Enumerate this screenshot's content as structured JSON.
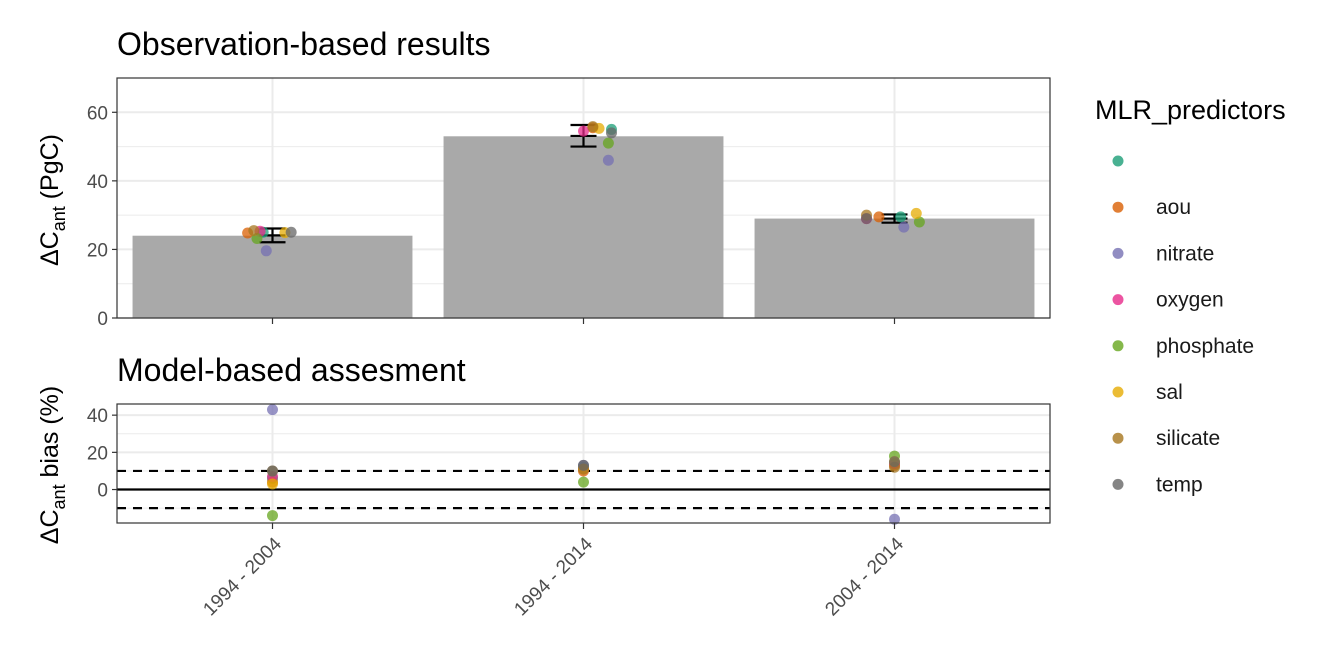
{
  "chart_data": [
    {
      "type": "bar",
      "title": "Observation-based results",
      "ylabel": {
        "main": "ΔC",
        "sub": "ant",
        "rest": " (PgC)"
      },
      "categories": [
        "1994 - 2004",
        "1994 - 2014",
        "2004 - 2014"
      ],
      "values": [
        24,
        53,
        29
      ],
      "errors": [
        {
          "mean": 24.1,
          "low": 22.1,
          "high": 26.1
        },
        {
          "mean": 53.1,
          "low": 50.0,
          "high": 56.3
        },
        {
          "mean": 29.0,
          "low": 27.8,
          "high": 30.2
        }
      ],
      "ylim": [
        0,
        70
      ],
      "yticks": [
        0,
        20,
        40,
        60
      ],
      "points": [
        {
          "cat": 0,
          "jitter": -0.03,
          "predictor": "",
          "value": 25.0
        },
        {
          "cat": 0,
          "jitter": -0.08,
          "predictor": "aou",
          "value": 24.8
        },
        {
          "cat": 0,
          "jitter": -0.02,
          "predictor": "nitrate",
          "value": 19.6
        },
        {
          "cat": 0,
          "jitter": -0.04,
          "predictor": "oxygen",
          "value": 25.3
        },
        {
          "cat": 0,
          "jitter": -0.05,
          "predictor": "phosphate",
          "value": 23.2
        },
        {
          "cat": 0,
          "jitter": 0.04,
          "predictor": "sal",
          "value": 24.9
        },
        {
          "cat": 0,
          "jitter": -0.06,
          "predictor": "silicate",
          "value": 25.5
        },
        {
          "cat": 0,
          "jitter": 0.06,
          "predictor": "temp",
          "value": 25.0
        },
        {
          "cat": 1,
          "jitter": 0.09,
          "predictor": "",
          "value": 55.0
        },
        {
          "cat": 1,
          "jitter": 0.03,
          "predictor": "aou",
          "value": 55.5
        },
        {
          "cat": 1,
          "jitter": 0.08,
          "predictor": "nitrate",
          "value": 46.0
        },
        {
          "cat": 1,
          "jitter": 0.0,
          "predictor": "oxygen",
          "value": 54.5
        },
        {
          "cat": 1,
          "jitter": 0.08,
          "predictor": "phosphate",
          "value": 51.0
        },
        {
          "cat": 1,
          "jitter": 0.05,
          "predictor": "sal",
          "value": 55.3
        },
        {
          "cat": 1,
          "jitter": 0.03,
          "predictor": "silicate",
          "value": 55.8
        },
        {
          "cat": 1,
          "jitter": 0.09,
          "predictor": "temp",
          "value": 54.0
        },
        {
          "cat": 2,
          "jitter": 0.02,
          "predictor": "",
          "value": 29.5
        },
        {
          "cat": 2,
          "jitter": -0.05,
          "predictor": "aou",
          "value": 29.5
        },
        {
          "cat": 2,
          "jitter": 0.03,
          "predictor": "nitrate",
          "value": 26.5
        },
        {
          "cat": 2,
          "jitter": -0.09,
          "predictor": "oxygen",
          "value": 29.0
        },
        {
          "cat": 2,
          "jitter": 0.08,
          "predictor": "phosphate",
          "value": 28.0
        },
        {
          "cat": 2,
          "jitter": 0.07,
          "predictor": "sal",
          "value": 30.5
        },
        {
          "cat": 2,
          "jitter": -0.09,
          "predictor": "silicate",
          "value": 30.0
        },
        {
          "cat": 2,
          "jitter": -0.09,
          "predictor": "temp",
          "value": 29.0
        }
      ]
    },
    {
      "type": "scatter",
      "title": "Model-based assesment",
      "ylabel": {
        "main": "ΔC",
        "sub": "ant",
        "rest": " bias (%)"
      },
      "categories": [
        "1994 - 2004",
        "1994 - 2014",
        "2004 - 2014"
      ],
      "ylim": [
        -18,
        46
      ],
      "yticks": [
        0,
        20,
        40
      ],
      "hline_solid": 0,
      "hlines_dashed": [
        10,
        -10
      ],
      "points": [
        {
          "cat": 0,
          "predictor": "",
          "value": 6.0
        },
        {
          "cat": 0,
          "predictor": "aou",
          "value": 4.0
        },
        {
          "cat": 0,
          "predictor": "nitrate",
          "value": 43.0
        },
        {
          "cat": 0,
          "predictor": "oxygen",
          "value": 7.0
        },
        {
          "cat": 0,
          "predictor": "phosphate",
          "value": -14.0
        },
        {
          "cat": 0,
          "predictor": "sal",
          "value": 3.0
        },
        {
          "cat": 0,
          "predictor": "silicate",
          "value": 10.0
        },
        {
          "cat": 0,
          "predictor": "temp",
          "value": 10.0
        },
        {
          "cat": 1,
          "predictor": "",
          "value": 12.0
        },
        {
          "cat": 1,
          "predictor": "aou",
          "value": 10.0
        },
        {
          "cat": 1,
          "predictor": "nitrate",
          "value": 13.0
        },
        {
          "cat": 1,
          "predictor": "oxygen",
          "value": 11.0
        },
        {
          "cat": 1,
          "predictor": "phosphate",
          "value": 4.0
        },
        {
          "cat": 1,
          "predictor": "sal",
          "value": 11.0
        },
        {
          "cat": 1,
          "predictor": "silicate",
          "value": 11.0
        },
        {
          "cat": 1,
          "predictor": "temp",
          "value": 13.0
        },
        {
          "cat": 2,
          "predictor": "",
          "value": 14.0
        },
        {
          "cat": 2,
          "predictor": "aou",
          "value": 13.0
        },
        {
          "cat": 2,
          "predictor": "nitrate",
          "value": -16.0
        },
        {
          "cat": 2,
          "predictor": "oxygen",
          "value": 14.0
        },
        {
          "cat": 2,
          "predictor": "phosphate",
          "value": 18.0
        },
        {
          "cat": 2,
          "predictor": "sal",
          "value": 15.0
        },
        {
          "cat": 2,
          "predictor": "silicate",
          "value": 12.0
        },
        {
          "cat": 2,
          "predictor": "temp",
          "value": 15.0
        }
      ]
    }
  ],
  "legend": {
    "title": "MLR_predictors",
    "placement": "right",
    "items": [
      {
        "label": "",
        "color": "#1B9E77"
      },
      {
        "label": "aou",
        "color": "#D95F02"
      },
      {
        "label": "nitrate",
        "color": "#7570B3"
      },
      {
        "label": "oxygen",
        "color": "#E7298A"
      },
      {
        "label": "phosphate",
        "color": "#66A61E"
      },
      {
        "label": "sal",
        "color": "#E6AB02"
      },
      {
        "label": "silicate",
        "color": "#A6761D"
      },
      {
        "label": "temp",
        "color": "#666666"
      }
    ]
  },
  "colors": {
    "bar_fill": "#A9A9A9",
    "grid": "#EBEBEB",
    "panel_border": "#333333"
  }
}
